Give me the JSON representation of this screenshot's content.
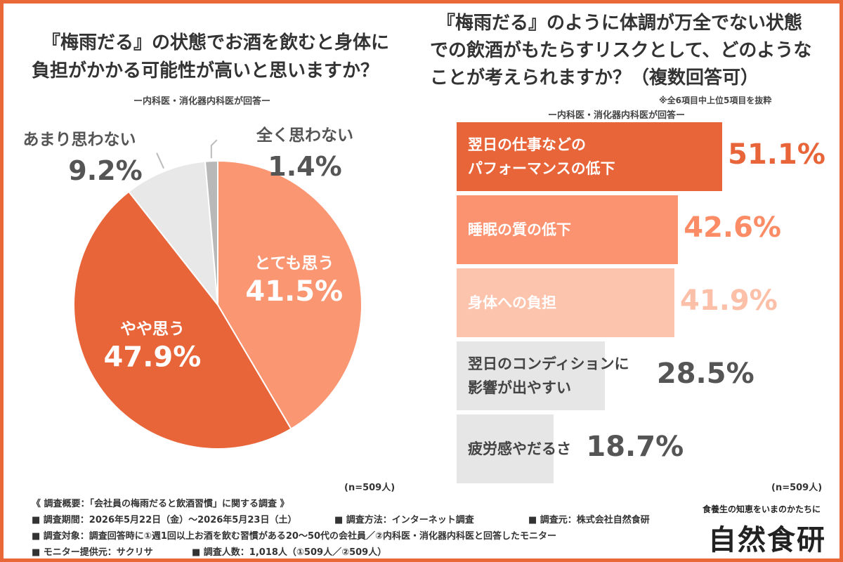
{
  "left": {
    "title_line1": "『梅雨だる』の状態でお酒を飲むと身体に",
    "title_line2": "負担がかかる可能性が高いと思いますか？",
    "subtitle": "ー内科医・消化器内科医が回答ー",
    "n_label": "(n=509人)"
  },
  "right": {
    "title_line1": "『梅雨だる』のように体調が万全でない状態",
    "title_line2": "での飲酒がもたらすリスクとして、どのような",
    "title_line3": "ことが考えられますか？（複数回答可）",
    "note": "※全6項目中上位5項目を抜粋",
    "subtitle": "ー内科医・消化器内科医が回答ー",
    "n_label": "(n=509人)"
  },
  "chart_data": [
    {
      "type": "pie",
      "title": "『梅雨だる』の状態でお酒を飲むと身体に負担がかかる可能性が高いと思いますか？",
      "slices": [
        {
          "label": "とても思う",
          "value": 41.5,
          "display": "41.5%",
          "color": "#fb9673"
        },
        {
          "label": "やや思う",
          "value": 47.9,
          "display": "47.9%",
          "color": "#e8653a"
        },
        {
          "label": "あまり思わない",
          "value": 9.2,
          "display": "9.2%",
          "color": "#e8e8e8"
        },
        {
          "label": "全く思わない",
          "value": 1.4,
          "display": "1.4%",
          "color": "#b8b8b8"
        }
      ]
    },
    {
      "type": "bar",
      "orientation": "horizontal",
      "title": "『梅雨だる』のように体調が万全でない状態での飲酒がもたらすリスクとして、どのようなことが考えられますか？（複数回答可）",
      "bars": [
        {
          "label_line1": "翌日の仕事などの",
          "label_line2": "パフォーマンスの低下",
          "value": 51.1,
          "display": "51.1%",
          "color": "#e8653a",
          "text_color": "#ffffff",
          "value_color": "#e8653a"
        },
        {
          "label_line1": "睡眠の質の低下",
          "label_line2": "",
          "value": 42.6,
          "display": "42.6%",
          "color": "#fb9270",
          "text_color": "#ffffff",
          "value_color": "#fb8c66"
        },
        {
          "label_line1": "身体への負担",
          "label_line2": "",
          "value": 41.9,
          "display": "41.9%",
          "color": "#fcc3ad",
          "text_color": "#ffffff",
          "value_color": "#fcbfa8"
        },
        {
          "label_line1": "翌日のコンディションに",
          "label_line2": "影響が出やすい",
          "value": 28.5,
          "display": "28.5%",
          "color": "#e6e6e6",
          "text_color": "#444444",
          "value_color": "#555555"
        },
        {
          "label_line1": "疲労感やだるさ",
          "label_line2": "",
          "value": 18.7,
          "display": "18.7%",
          "color": "#e6e6e6",
          "text_color": "#444444",
          "value_color": "#555555"
        }
      ]
    }
  ],
  "footer": {
    "summary": "《 調査概要：「会社員の梅雨だると飲酒習慣」に関する調査 》",
    "period": "■ 調査期間：2026年5月22日（金）〜2026年5月23日（土）",
    "method": "■ 調査方法：インターネット調査",
    "source": "■ 調査元：株式会社自然食研",
    "target": "■ 調査対象：調査回答時に①週1回以上お酒を飲む習慣がある20〜50代の会社員／②内科医・消化器内科医と回答したモニター",
    "provider": "■ モニター提供元：サクリサ",
    "count": "■ 調査人数：1,018人（①509人／②509人）"
  },
  "logo": {
    "tagline": "食養生の知恵をいまのかたちに",
    "name": "自然食研"
  }
}
